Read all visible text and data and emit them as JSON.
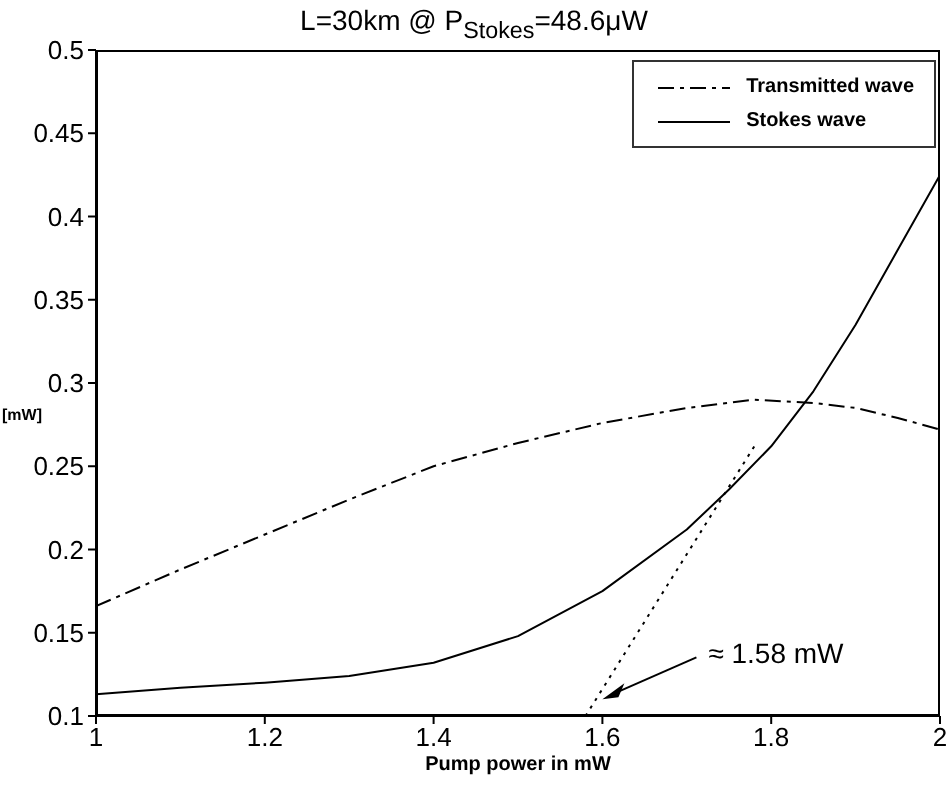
{
  "chart_data": {
    "type": "line",
    "title": "L=30km @ P$_{Stokes}$=48.6μW",
    "xlabel": "Pump power in mW",
    "ylabel": "[mW]",
    "xlim": [
      1,
      2
    ],
    "xticks": [
      1,
      1.2,
      1.4,
      1.6,
      1.8,
      2
    ],
    "ylim": [
      0.1,
      0.5
    ],
    "yticks": [
      0.1,
      0.15,
      0.2,
      0.25,
      0.3,
      0.35,
      0.4,
      0.45,
      0.5
    ],
    "legend": "top right",
    "marker": "none",
    "series": [
      {
        "name": "Transmitted wave",
        "color": "#000000",
        "line_style": "dashdot",
        "x": [
          1,
          1.1,
          1.2,
          1.3,
          1.4,
          1.5,
          1.6,
          1.7,
          1.78,
          1.85,
          1.9,
          1.95,
          2
        ],
        "values": [
          0.166,
          0.188,
          0.209,
          0.23,
          0.25,
          0.264,
          0.276,
          0.285,
          0.29,
          0.288,
          0.285,
          0.279,
          0.272
        ]
      },
      {
        "name": "Stokes wave",
        "color": "#000000",
        "line_style": "solid",
        "x": [
          1,
          1.1,
          1.2,
          1.3,
          1.4,
          1.5,
          1.6,
          1.7,
          1.75,
          1.8,
          1.85,
          1.9,
          1.95,
          2
        ],
        "values": [
          0.113,
          0.117,
          0.12,
          0.124,
          0.132,
          0.148,
          0.175,
          0.212,
          0.236,
          0.262,
          0.295,
          0.335,
          0.38,
          0.425
        ]
      },
      {
        "color": "#000000",
        "line_style": "dotted",
        "x": [
          1.58,
          1.78
        ],
        "values": [
          0.1,
          0.262
        ]
      }
    ],
    "annotations": [
      {
        "text": "≈ 1.58 mW",
        "x": 1.6,
        "y": 0.11
      }
    ]
  }
}
